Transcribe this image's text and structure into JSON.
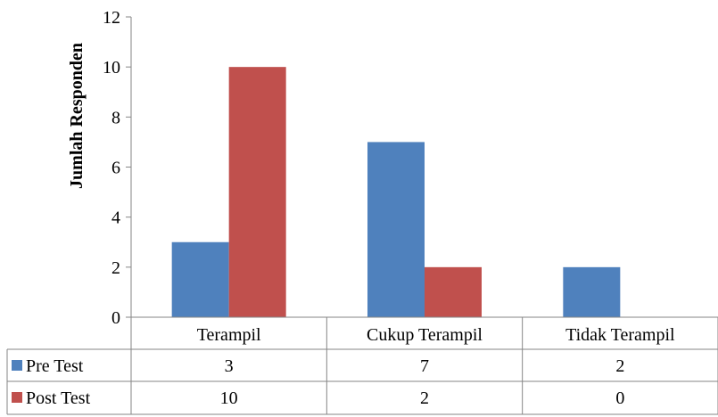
{
  "chart_data": {
    "type": "bar",
    "title": "",
    "xlabel": "",
    "ylabel": "Jumlah Responden",
    "ylim": [
      0,
      12
    ],
    "yticks": [
      0,
      2,
      4,
      6,
      8,
      10,
      12
    ],
    "grid": false,
    "legend": "data-table-left",
    "categories": [
      "Terampil",
      "Cukup Terampil",
      "Tidak Terampil"
    ],
    "series": [
      {
        "name": "Pre Test",
        "color": "#4F81BD",
        "values": [
          3,
          7,
          2
        ]
      },
      {
        "name": "Post Test",
        "color": "#C0504D",
        "values": [
          10,
          2,
          0
        ]
      }
    ],
    "data_table": true
  }
}
